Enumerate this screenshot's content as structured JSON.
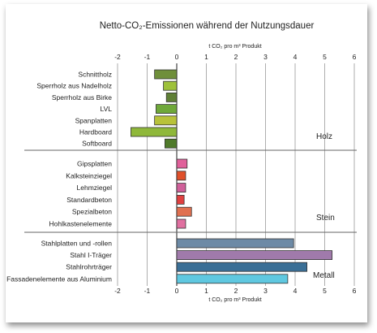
{
  "chart_data": {
    "type": "bar",
    "orientation": "horizontal",
    "title": "Netto-CO₂-Emissionen während der Nutzungsdauer",
    "xlabel": "t CO₂ pro m³ Produkt",
    "xlim": [
      -2,
      6
    ],
    "xticks": [
      "-2",
      "-1",
      "0",
      "1",
      "2",
      "3",
      "4",
      "5",
      "6"
    ],
    "grid": true,
    "groups": [
      {
        "name": "Holz",
        "categories": [
          "Schnittholz",
          "Sperrholz aus Nadelholz",
          "Sperrholz aus Birke",
          "LVL",
          "Spanplatten",
          "Hardboard",
          "Softboard"
        ],
        "values": [
          -0.75,
          -0.45,
          -0.35,
          -0.7,
          -0.75,
          -1.55,
          -0.4
        ],
        "colors": [
          "#6f8f3a",
          "#9ec13a",
          "#5f7f35",
          "#6fa83a",
          "#b8c23a",
          "#8fb83a",
          "#4f7a2a"
        ]
      },
      {
        "name": "Stein",
        "categories": [
          "Gipsplatten",
          "Kalksteinziegel",
          "Lehmziegel",
          "Standardbeton",
          "Spezialbeton",
          "Hohlkastenelemente"
        ],
        "values": [
          0.35,
          0.3,
          0.3,
          0.25,
          0.5,
          0.3
        ],
        "colors": [
          "#e0609a",
          "#e0502a",
          "#d0609a",
          "#e04040",
          "#e07050",
          "#e070a0"
        ]
      },
      {
        "name": "Metall",
        "categories": [
          "Stahlplatten und -rollen",
          "Stahl I-Träger",
          "Stahlrohrträger",
          "Fassadenelemente aus Aluminium"
        ],
        "values": [
          3.95,
          5.25,
          4.4,
          3.75
        ],
        "colors": [
          "#6d8aa6",
          "#a07aab",
          "#3a6f96",
          "#5fc8e0"
        ]
      }
    ]
  }
}
